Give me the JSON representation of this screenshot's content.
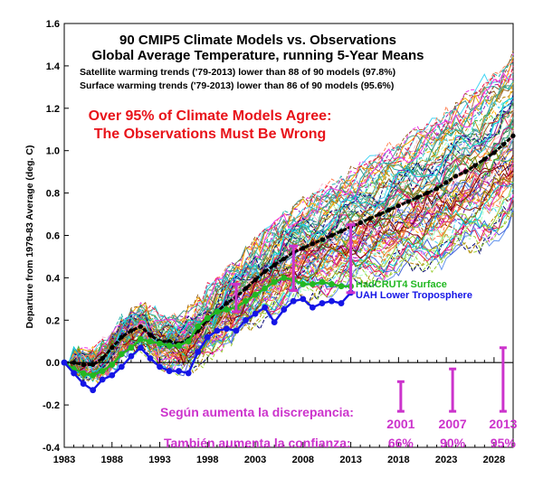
{
  "chart_data": {
    "type": "line",
    "title_lines": [
      "90 CMIP5 Climate Models vs. Observations",
      "Global Average Temperature, running 5-Year Means"
    ],
    "notes": [
      "Satellite warming trends ('79-2013) lower than 88 of 90 models (97.8%)",
      "Surface warming trends ('79-2013) lower than 86 of 90 models (95.6%)"
    ],
    "headline": [
      "Over 95% of Climate Models Agree:",
      "The Observations Must Be Wrong"
    ],
    "ylabel": "Departure from 1979-83 Average (deg. C)",
    "xlim": [
      1983,
      2030
    ],
    "ylim": [
      -0.4,
      1.6
    ],
    "x_ticks": [
      "1983",
      "1988",
      "1993",
      "1998",
      "2003",
      "2008",
      "2013",
      "2018",
      "2023",
      "2028"
    ],
    "y_ticks": [
      "-0.4",
      "-0.2",
      "0.0",
      "0.2",
      "0.4",
      "0.6",
      "0.8",
      "1.0",
      "1.2",
      "1.4",
      "1.6"
    ],
    "model_count": 90,
    "series": [
      {
        "name": "Model mean",
        "color": "#000000",
        "x": [
          1983,
          1984,
          1985,
          1986,
          1987,
          1988,
          1989,
          1990,
          1991,
          1992,
          1993,
          1994,
          1995,
          1996,
          1997,
          1998,
          1999,
          2000,
          2001,
          2002,
          2003,
          2004,
          2005,
          2006,
          2007,
          2008,
          2009,
          2010,
          2011,
          2012,
          2013,
          2014,
          2015,
          2016,
          2017,
          2018,
          2019,
          2020,
          2021,
          2022,
          2023,
          2024,
          2025,
          2026,
          2027,
          2028,
          2029,
          2030
        ],
        "values": [
          0.0,
          0.0,
          -0.01,
          -0.01,
          0.02,
          0.07,
          0.12,
          0.15,
          0.17,
          0.13,
          0.1,
          0.1,
          0.09,
          0.11,
          0.15,
          0.2,
          0.24,
          0.28,
          0.31,
          0.35,
          0.39,
          0.43,
          0.46,
          0.49,
          0.52,
          0.54,
          0.56,
          0.58,
          0.6,
          0.62,
          0.64,
          0.66,
          0.68,
          0.7,
          0.72,
          0.74,
          0.76,
          0.78,
          0.8,
          0.82,
          0.85,
          0.88,
          0.9,
          0.93,
          0.96,
          0.99,
          1.03,
          1.07
        ]
      },
      {
        "name": "HadCRUT4 Surface",
        "color": "#22b822",
        "x": [
          1983,
          1984,
          1985,
          1986,
          1987,
          1988,
          1989,
          1990,
          1991,
          1992,
          1993,
          1994,
          1995,
          1996,
          1997,
          1998,
          1999,
          2000,
          2001,
          2002,
          2003,
          2004,
          2005,
          2006,
          2007,
          2008,
          2009,
          2010,
          2011,
          2012,
          2013
        ],
        "values": [
          0.0,
          -0.03,
          -0.05,
          -0.06,
          -0.04,
          -0.01,
          0.04,
          0.07,
          0.11,
          0.1,
          0.09,
          0.08,
          0.08,
          0.1,
          0.17,
          0.21,
          0.24,
          0.25,
          0.26,
          0.29,
          0.32,
          0.35,
          0.38,
          0.4,
          0.39,
          0.37,
          0.37,
          0.38,
          0.37,
          0.36,
          0.36
        ]
      },
      {
        "name": "UAH Lower Troposphere",
        "color": "#1515e6",
        "x": [
          1983,
          1984,
          1985,
          1986,
          1987,
          1988,
          1989,
          1990,
          1991,
          1992,
          1993,
          1994,
          1995,
          1996,
          1997,
          1998,
          1999,
          2000,
          2001,
          2002,
          2003,
          2004,
          2005,
          2006,
          2007,
          2008,
          2009,
          2010,
          2011,
          2012,
          2013
        ],
        "values": [
          0.0,
          -0.05,
          -0.1,
          -0.13,
          -0.08,
          -0.06,
          -0.02,
          0.03,
          0.07,
          0.02,
          -0.02,
          -0.04,
          -0.04,
          -0.05,
          0.05,
          0.12,
          0.15,
          0.16,
          0.15,
          0.2,
          0.23,
          0.26,
          0.19,
          0.25,
          0.29,
          0.3,
          0.26,
          0.28,
          0.29,
          0.28,
          0.33
        ]
      }
    ],
    "discrepancy_bars": [
      {
        "year": 2001,
        "low": 0.24,
        "high": 0.37
      },
      {
        "year": 2007,
        "low": 0.34,
        "high": 0.55
      },
      {
        "year": 2013,
        "low": 0.33,
        "high": 0.65
      }
    ],
    "annotation": {
      "label_1": "Según aumenta la discrepancia:",
      "label_2": "También aumenta la confianza:",
      "years": [
        "2001",
        "2007",
        "2013"
      ],
      "confidence": [
        "66%",
        "90%",
        "95%"
      ],
      "bar_tops": [
        -0.09,
        -0.03,
        0.07
      ],
      "bar_bottom": -0.23
    },
    "colors": {
      "magenta": "#cc33cc",
      "headline_red": "#e8131a"
    }
  }
}
